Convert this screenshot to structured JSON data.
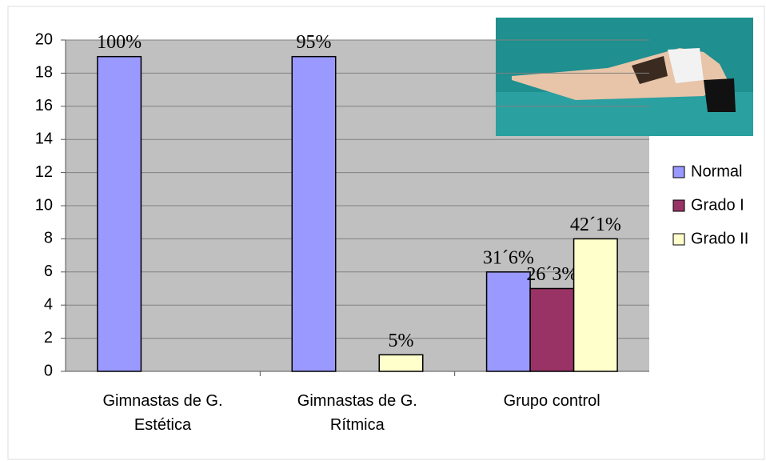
{
  "chart_data": {
    "type": "bar",
    "categories": [
      "Gimnastas de G.\nEstética",
      "Gimnastas de G.\nRítmica",
      "Grupo control"
    ],
    "series": [
      {
        "name": "Normal",
        "color": "#9999ff",
        "values": [
          19,
          19,
          6
        ],
        "percentages": [
          100,
          95,
          31.6
        ],
        "percentage_labels": [
          "100%",
          "95%",
          "31´6%"
        ]
      },
      {
        "name": "Grado I",
        "color": "#993366",
        "values": [
          0,
          0,
          5
        ],
        "percentages": [
          null,
          null,
          26.3
        ],
        "percentage_labels": [
          null,
          null,
          "26´3%"
        ]
      },
      {
        "name": "Grado II",
        "color": "#ffffcc",
        "values": [
          0,
          1,
          8
        ],
        "percentages": [
          null,
          5,
          42.1
        ],
        "percentage_labels": [
          null,
          "5%",
          "42´1%"
        ]
      }
    ],
    "ylim": [
      0,
      20
    ],
    "yticks": [
      0,
      2,
      4,
      6,
      8,
      10,
      12,
      14,
      16,
      18,
      20
    ],
    "grid": true,
    "legend": "right"
  }
}
